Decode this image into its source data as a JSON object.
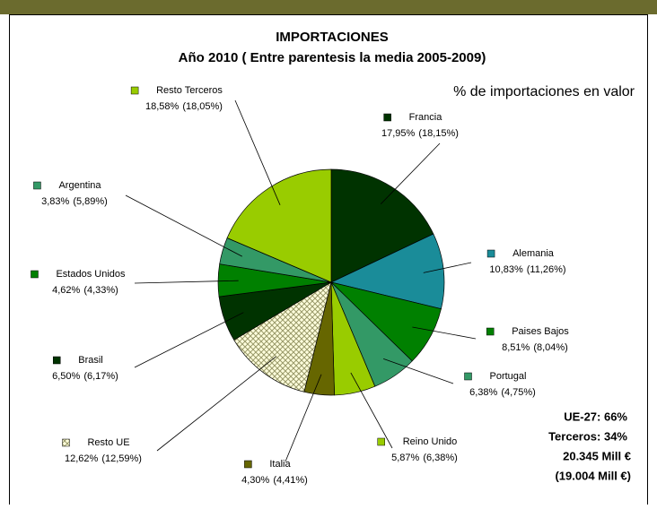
{
  "chart_data": {
    "type": "pie",
    "title": "IMPORTACIONES",
    "subtitle": "Año 2010 ( Entre parentesis la media 2005-2009)",
    "annotations": [
      "% de importaciones en valor",
      "UE-27: 66%",
      "Terceros: 34%",
      "20.345 Mill €",
      "(19.004 Mill €)"
    ],
    "categories": [
      "Francia",
      "Alemania",
      "Paises Bajos",
      "Portugal",
      "Reino Unido",
      "Italia",
      "Resto UE",
      "Brasil",
      "Estados Unidos",
      "Argentina",
      "Resto Terceros"
    ],
    "values": [
      17.95,
      10.83,
      8.51,
      6.38,
      5.87,
      4.3,
      12.62,
      6.5,
      4.62,
      3.83,
      18.58
    ],
    "value_labels": [
      "17,95%",
      "10,83%",
      "8,51%",
      "6,38%",
      "5,87%",
      "4,30%",
      "12,62%",
      "6,50%",
      "4,62%",
      "3,83%",
      "18,58%"
    ],
    "average_labels": [
      "(18,15%)",
      "(11,26%)",
      "(8,04%)",
      "(4,75%)",
      "(6,38%)",
      "(4,41%)",
      "(12,59%)",
      "(6,17%)",
      "(4,33%)",
      "(5,89%)",
      "(18,05%)"
    ],
    "colors": [
      "#003300",
      "#1a8c99",
      "#008000",
      "#339966",
      "#99cc00",
      "#666600",
      "url(#hatch)",
      "#003300",
      "#008000",
      "#339966",
      "#99cc00"
    ]
  }
}
